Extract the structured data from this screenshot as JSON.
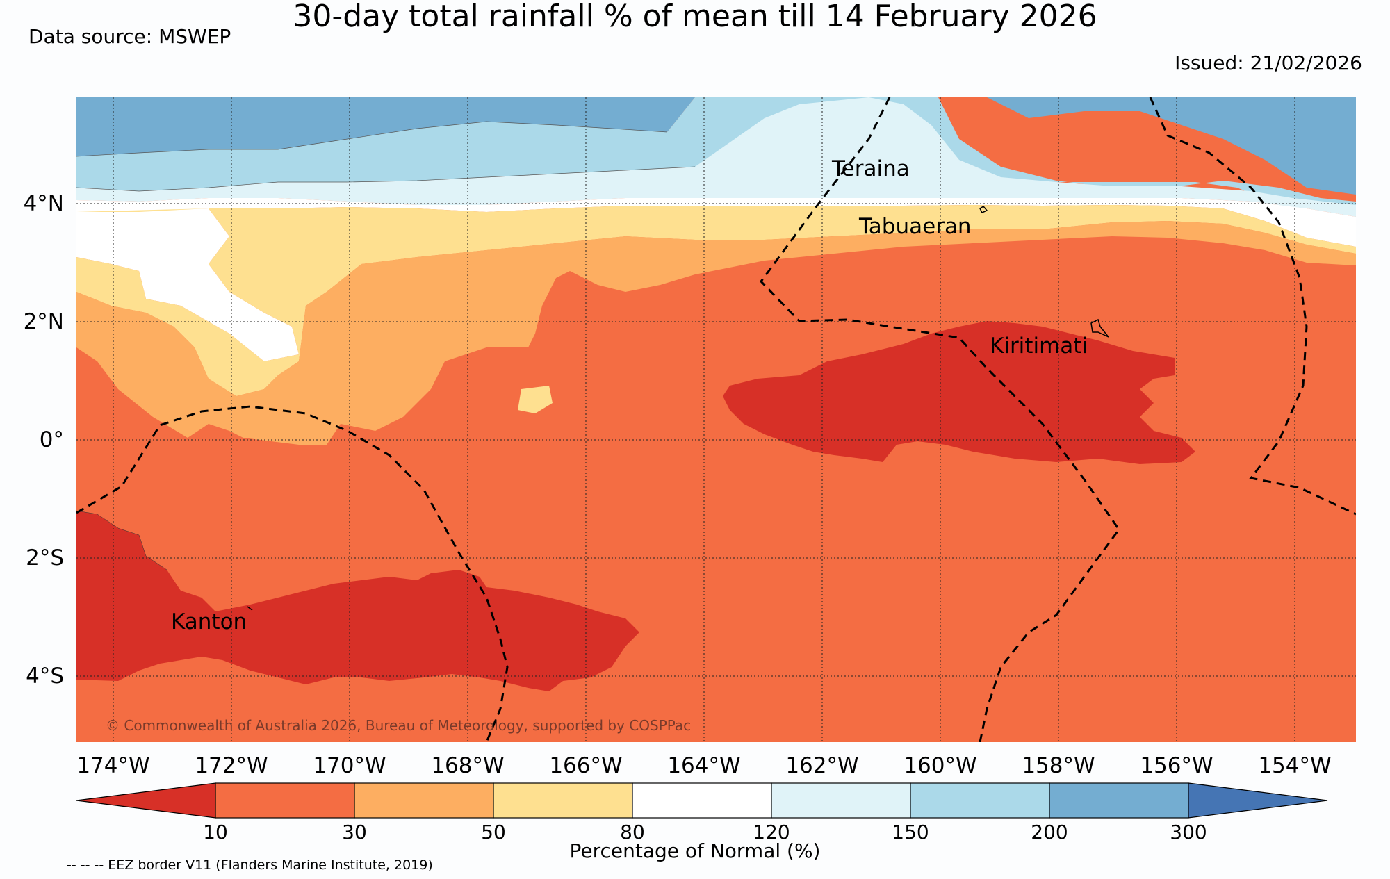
{
  "title": "30-day total rainfall % of mean till 14 February 2026",
  "data_source": "Data source: MSWEP",
  "issued": "Issued: 21/02/2026",
  "copyright": "© Commonwealth of Australia 2026, Bureau of Meteorology, supported by COSPPac",
  "lat_labels": [
    "4°N",
    "2°N",
    "0°",
    "2°S",
    "4°S"
  ],
  "lon_labels": [
    "174°W",
    "172°W",
    "170°W",
    "168°W",
    "166°W",
    "164°W",
    "162°W",
    "160°W",
    "158°W",
    "156°W",
    "154°W"
  ],
  "places": [
    {
      "name": "Teraina"
    },
    {
      "name": "Tabuaeran"
    },
    {
      "name": "Kiritimati"
    },
    {
      "name": "Kanton"
    }
  ],
  "colorbar": {
    "label": "Percentage of Normal (%)",
    "ticks": [
      "10",
      "30",
      "50",
      "80",
      "120",
      "150",
      "200",
      "300"
    ],
    "colors": [
      "#d73027",
      "#f46d43",
      "#fdae61",
      "#fee090",
      "#ffffff",
      "#e0f3f8",
      "#abd9e9",
      "#74add1",
      "#4575b4"
    ]
  },
  "eez_note": "-- -- -- EEZ border V11 (Flanders Marine Institute, 2019)"
}
